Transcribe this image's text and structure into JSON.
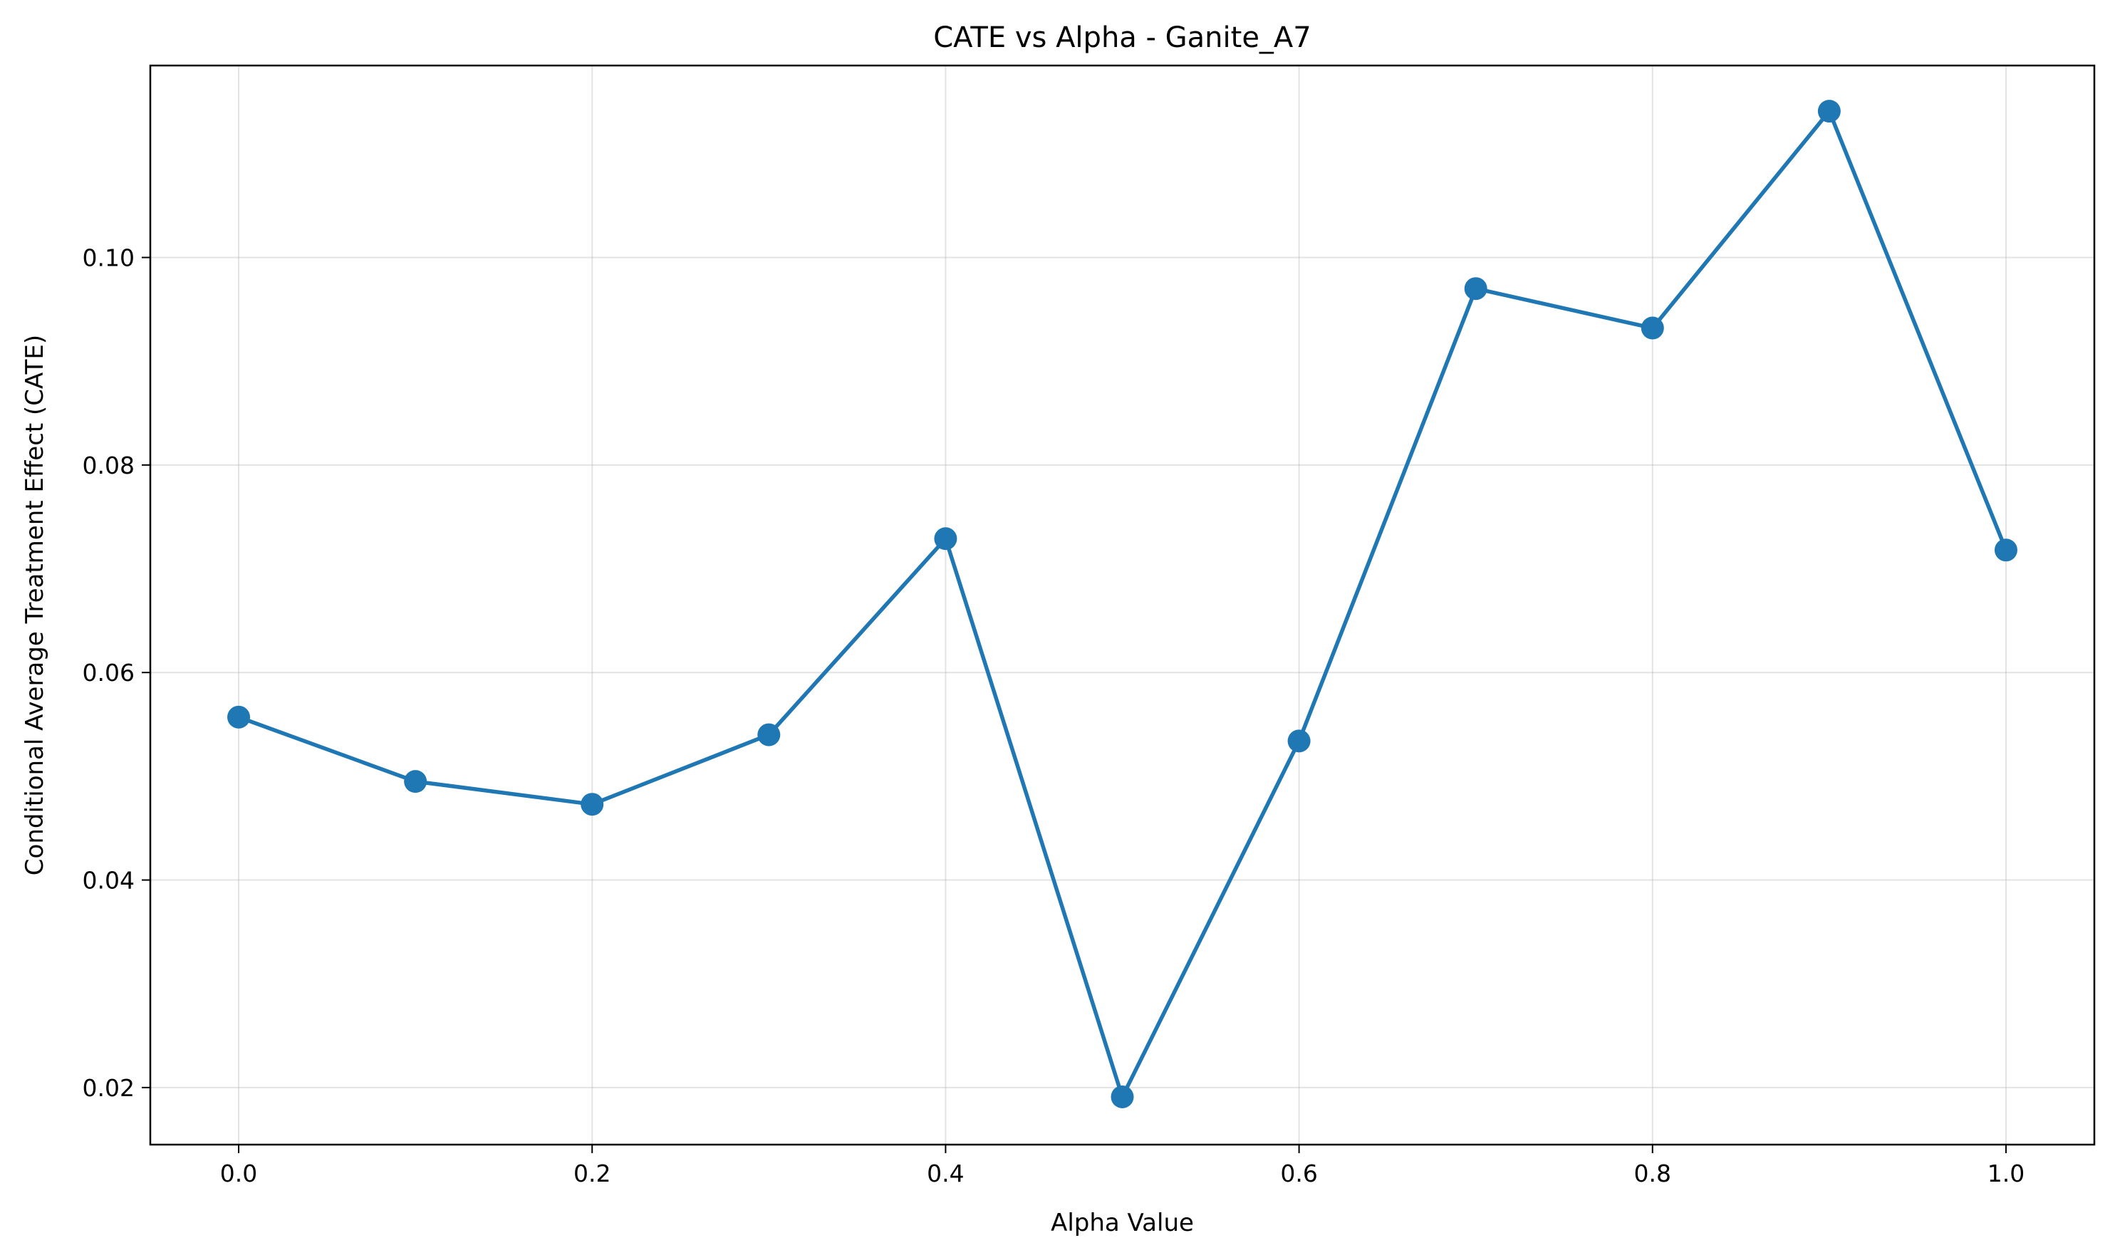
{
  "chart_data": {
    "type": "line",
    "title": "CATE vs Alpha - Ganite_A7",
    "xlabel": "Alpha Value",
    "ylabel": "Conditional Average Treatment Effect (CATE)",
    "xlim": [
      -0.05,
      1.05
    ],
    "ylim": [
      0.0145,
      0.1185
    ],
    "x_ticks": [
      0.0,
      0.2,
      0.4,
      0.6,
      0.8,
      1.0
    ],
    "x_tick_labels": [
      "0.0",
      "0.2",
      "0.4",
      "0.6",
      "0.8",
      "1.0"
    ],
    "y_ticks": [
      0.02,
      0.04,
      0.06,
      0.08,
      0.1
    ],
    "y_tick_labels": [
      "0.02",
      "0.04",
      "0.06",
      "0.08",
      "0.10"
    ],
    "grid": true,
    "series": [
      {
        "color": "#1f77b4",
        "marker": "circle",
        "x": [
          0.0,
          0.1,
          0.2,
          0.3,
          0.4,
          0.5,
          0.6,
          0.7,
          0.8,
          0.9,
          1.0
        ],
        "y": [
          0.0557,
          0.0495,
          0.0473,
          0.054,
          0.0729,
          0.0191,
          0.0534,
          0.097,
          0.0932,
          0.1141,
          0.0718
        ]
      }
    ]
  }
}
